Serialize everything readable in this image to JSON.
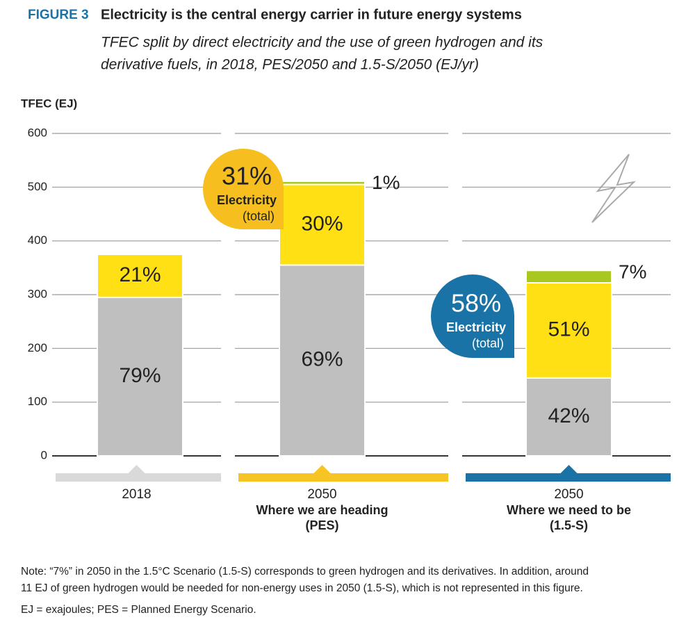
{
  "figure_label": "FIGURE 3",
  "chart_data": {
    "type": "stacked-bar",
    "title": "Electricity is the central energy carrier in future energy systems",
    "subtitle": [
      "TFEC split by direct electricity and the use of green hydrogen and its",
      "derivative fuels, in 2018, PES/2050 and 1.5-S/2050 (EJ/yr)"
    ],
    "y_label": "TFEC (EJ)",
    "categories": [
      "2018",
      "2050",
      "2050"
    ],
    "category_notes": [
      null,
      [
        "Where we are heading",
        "(PES)"
      ],
      [
        "Where we need to be",
        "(1.5-S)"
      ]
    ],
    "category_colors": [
      "#d9d9d9",
      "#f6c525",
      "#1a73a6"
    ],
    "series": [
      {
        "color": "#bfbfbf",
        "values": [
          295,
          355,
          145
        ],
        "value_labels": [
          "79%",
          "69%",
          "42%"
        ]
      },
      {
        "color": "#ffe014",
        "values": [
          80,
          150,
          177
        ],
        "value_labels": [
          "21%",
          "30%",
          "51%"
        ]
      },
      {
        "color": "#a8c820",
        "values": [
          null,
          6,
          23
        ],
        "value_labels": [
          null,
          "1%",
          "7%"
        ]
      }
    ],
    "ylim": [
      0,
      600
    ],
    "yticks": [
      0,
      100,
      200,
      300,
      400,
      500,
      600
    ],
    "grid": true,
    "callouts": [
      {
        "value_label": "31%",
        "label": "Electricity",
        "sublabel": "(total)",
        "color": "#f6be1e",
        "text_color": "#222222"
      },
      {
        "value_label": "58%",
        "label": "Electricity",
        "sublabel": "(total)",
        "color": "#1a73a6",
        "text_color": "#ffffff"
      }
    ]
  },
  "notes": [
    "Note: “7%” in 2050 in the 1.5°C Scenario (1.5-S) corresponds to green hydrogen and its derivatives. In addition, around",
    "11 EJ of green hydrogen would be needed for non-energy uses in 2050 (1.5-S), which is not represented in this figure.",
    "EJ = exajoules; PES = Planned Energy Scenario."
  ]
}
